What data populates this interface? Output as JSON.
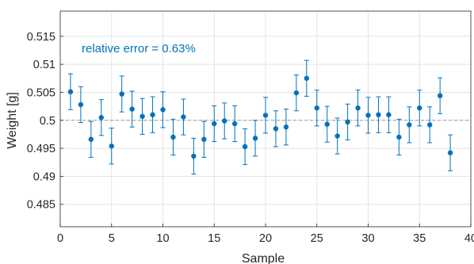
{
  "colors": {
    "series": "#0072BD",
    "grid": "#e3e3e3",
    "axis": "#262626",
    "reference": "#9a9a9a"
  },
  "chart_data": {
    "type": "scatter",
    "title": "",
    "xlabel": "Sample",
    "ylabel": "Weight [g]",
    "xlim": [
      0,
      40
    ],
    "ylim": [
      0.481,
      0.5195
    ],
    "x_ticks": [
      0,
      5,
      10,
      15,
      20,
      25,
      30,
      35,
      40
    ],
    "x_tick_labels": [
      "0",
      "5",
      "10",
      "15",
      "20",
      "25",
      "30",
      "35",
      "40"
    ],
    "y_ticks": [
      0.485,
      0.49,
      0.495,
      0.5,
      0.505,
      0.51,
      0.515
    ],
    "y_tick_labels": [
      "0.485",
      "0.49",
      "0.495",
      "0.5",
      "0.505",
      "0.51",
      "0.515"
    ],
    "grid": true,
    "reference_line": {
      "y": 0.5,
      "style": "dashed"
    },
    "annotation": "relative error = 0.63%",
    "error_bar_halfwidth": 0.0032,
    "series": [
      {
        "x": [
          1,
          2,
          3,
          4,
          5,
          6,
          7,
          8,
          9,
          10,
          11,
          12,
          13,
          14,
          15,
          16,
          17,
          18,
          19,
          20,
          21,
          22,
          23,
          24,
          25,
          26,
          27,
          28,
          29,
          30,
          31,
          32,
          33,
          34,
          35,
          36,
          37,
          38
        ],
        "y": [
          0.5051,
          0.5028,
          0.4966,
          0.5005,
          0.4954,
          0.5047,
          0.502,
          0.5007,
          0.501,
          0.5019,
          0.497,
          0.5006,
          0.4936,
          0.4966,
          0.4994,
          0.4999,
          0.4994,
          0.4953,
          0.4968,
          0.5009,
          0.4985,
          0.4988,
          0.5049,
          0.5075,
          0.5022,
          0.4993,
          0.4972,
          0.4997,
          0.5022,
          0.5009,
          0.501,
          0.501,
          0.497,
          0.4992,
          0.5022,
          0.4992,
          0.5044,
          0.4942
        ]
      }
    ]
  }
}
